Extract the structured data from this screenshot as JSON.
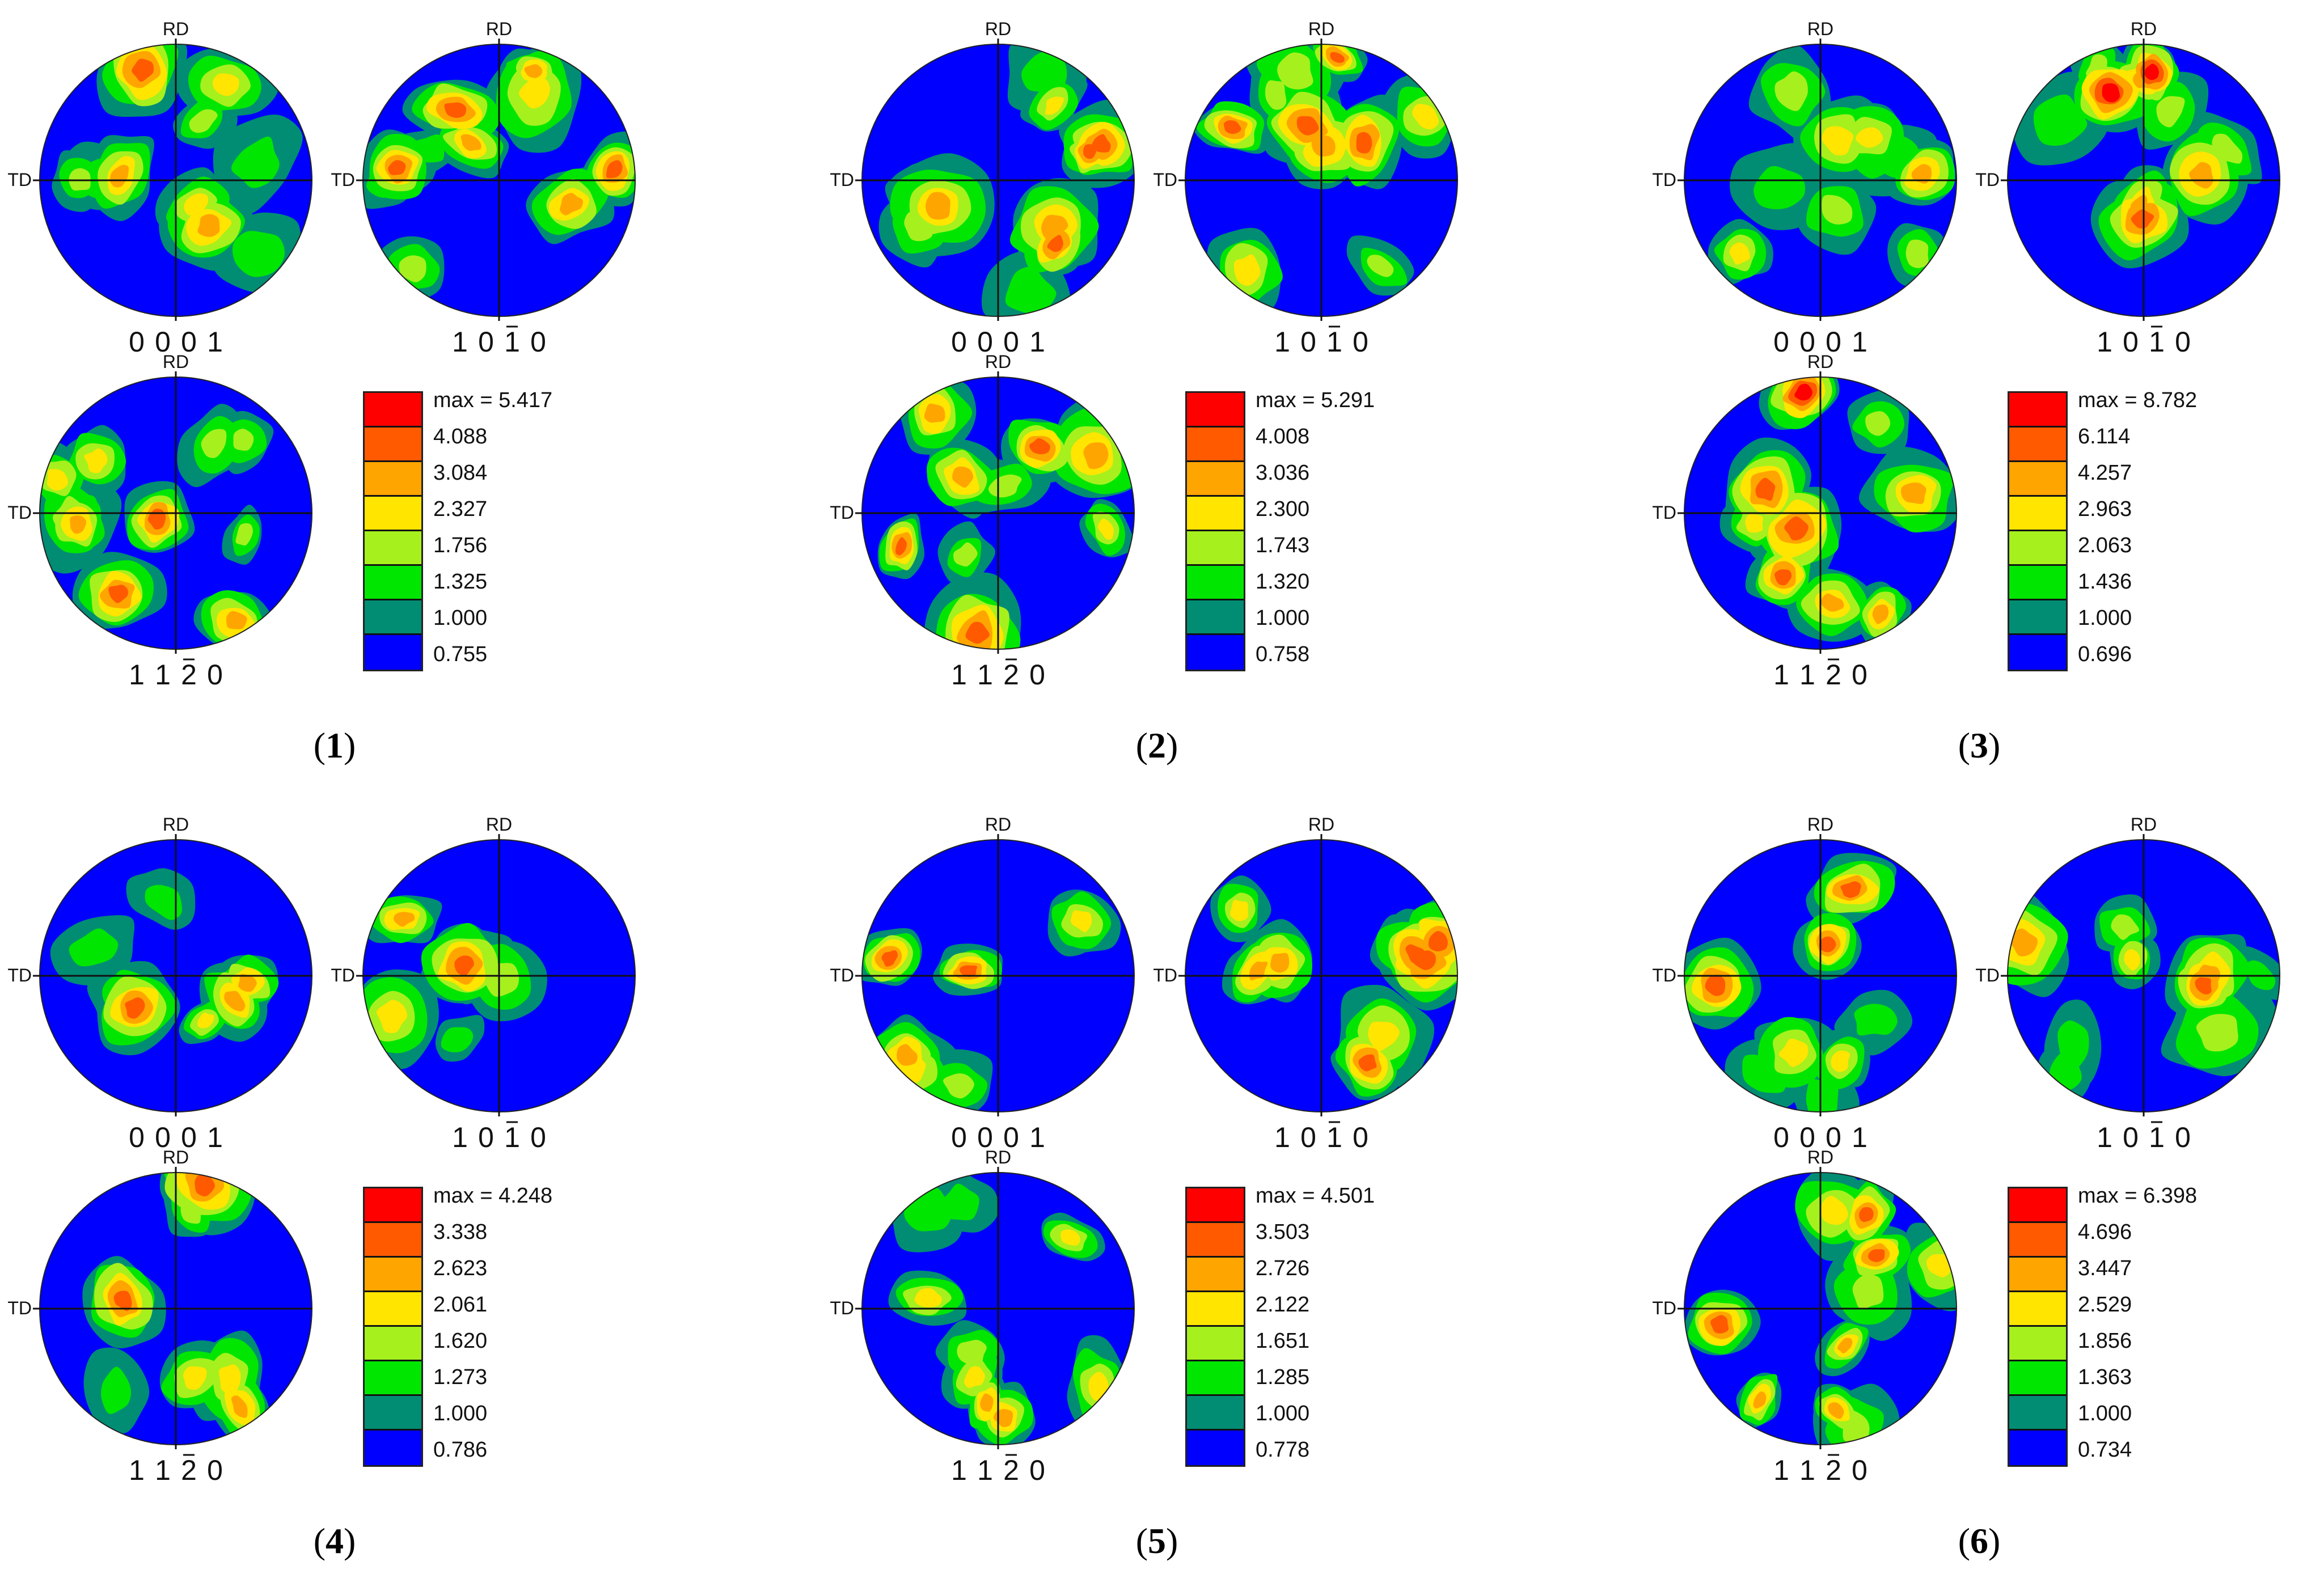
{
  "axis_labels": {
    "top": "RD",
    "left": "TD"
  },
  "palette": [
    "#0000ff",
    "#008d73",
    "#00e600",
    "#a6f01e",
    "#ffe500",
    "#ffa500",
    "#ff5a00",
    "#ff0000"
  ],
  "panels": [
    {
      "caption_number": "1",
      "poles": [
        "0 0 0 1",
        "1 0 1 0",
        "1 1 2 0"
      ],
      "legend": {
        "max": "max = 5.417",
        "levels": [
          "4.088",
          "3.084",
          "2.327",
          "1.756",
          "1.325",
          "1.000",
          "0.755"
        ]
      }
    },
    {
      "caption_number": "2",
      "poles": [
        "0 0 0 1",
        "1 0 1 0",
        "1 1 2 0"
      ],
      "legend": {
        "max": "max = 5.291",
        "levels": [
          "4.008",
          "3.036",
          "2.300",
          "1.743",
          "1.320",
          "1.000",
          "0.758"
        ]
      }
    },
    {
      "caption_number": "3",
      "poles": [
        "0 0 0 1",
        "1 0 1 0",
        "1 1 2 0"
      ],
      "legend": {
        "max": "max = 8.782",
        "levels": [
          "6.114",
          "4.257",
          "2.963",
          "2.063",
          "1.436",
          "1.000",
          "0.696"
        ]
      }
    },
    {
      "caption_number": "4",
      "poles": [
        "0 0 0 1",
        "1 0 1 0",
        "1 1 2 0"
      ],
      "legend": {
        "max": "max = 4.248",
        "levels": [
          "3.338",
          "2.623",
          "2.061",
          "1.620",
          "1.273",
          "1.000",
          "0.786"
        ]
      }
    },
    {
      "caption_number": "5",
      "poles": [
        "0 0 0 1",
        "1 0 1 0",
        "1 1 2 0"
      ],
      "legend": {
        "max": "max = 4.501",
        "levels": [
          "3.503",
          "2.726",
          "2.122",
          "1.651",
          "1.285",
          "1.000",
          "0.778"
        ]
      }
    },
    {
      "caption_number": "6",
      "poles": [
        "0 0 0 1",
        "1 0 1 0",
        "1 1 2 0"
      ],
      "legend": {
        "max": "max = 6.398",
        "levels": [
          "4.696",
          "3.447",
          "2.529",
          "1.856",
          "1.363",
          "1.000",
          "0.734"
        ]
      }
    }
  ]
}
